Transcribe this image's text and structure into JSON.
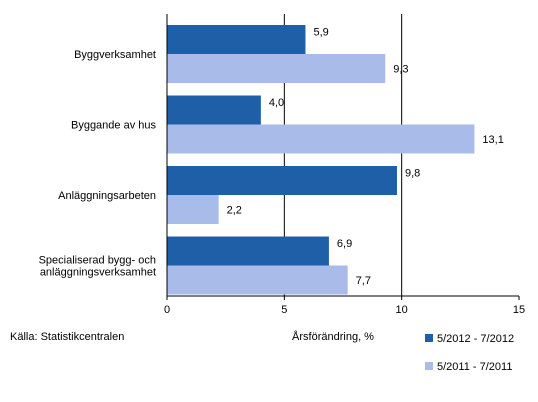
{
  "chart_data": {
    "type": "bar",
    "orientation": "horizontal",
    "categories": [
      "Byggverksamhet",
      "Byggande av hus",
      "Anläggningsarbeten",
      "Specialiserad bygg- och anläggningsverksamhet"
    ],
    "category_lines": [
      [
        "Byggverksamhet"
      ],
      [
        "Byggande av hus"
      ],
      [
        "Anläggningsarbeten"
      ],
      [
        "Specialiserad bygg- och",
        "anläggningsverksamhet"
      ]
    ],
    "series": [
      {
        "name": "5/2012 - 7/2012",
        "color": "#1f5fa8",
        "values": [
          5.9,
          4.0,
          9.8,
          6.9
        ],
        "labels": [
          "5,9",
          "4,0",
          "9,8",
          "6,9"
        ]
      },
      {
        "name": "5/2011 - 7/2011",
        "color": "#a9bbe8",
        "values": [
          9.3,
          13.1,
          2.2,
          7.7
        ],
        "labels": [
          "9,3",
          "13,1",
          "2,2",
          "7,7"
        ]
      }
    ],
    "xlim": [
      0,
      15
    ],
    "xticks": [
      0,
      5,
      10,
      15
    ],
    "xtick_labels": [
      "0",
      "5",
      "10",
      "15"
    ],
    "gridlines": [
      5,
      10
    ],
    "xlabel": "Årsförändring, %",
    "legend_position": "bottom-right"
  },
  "source_text": "Källa: Statistikcentralen"
}
